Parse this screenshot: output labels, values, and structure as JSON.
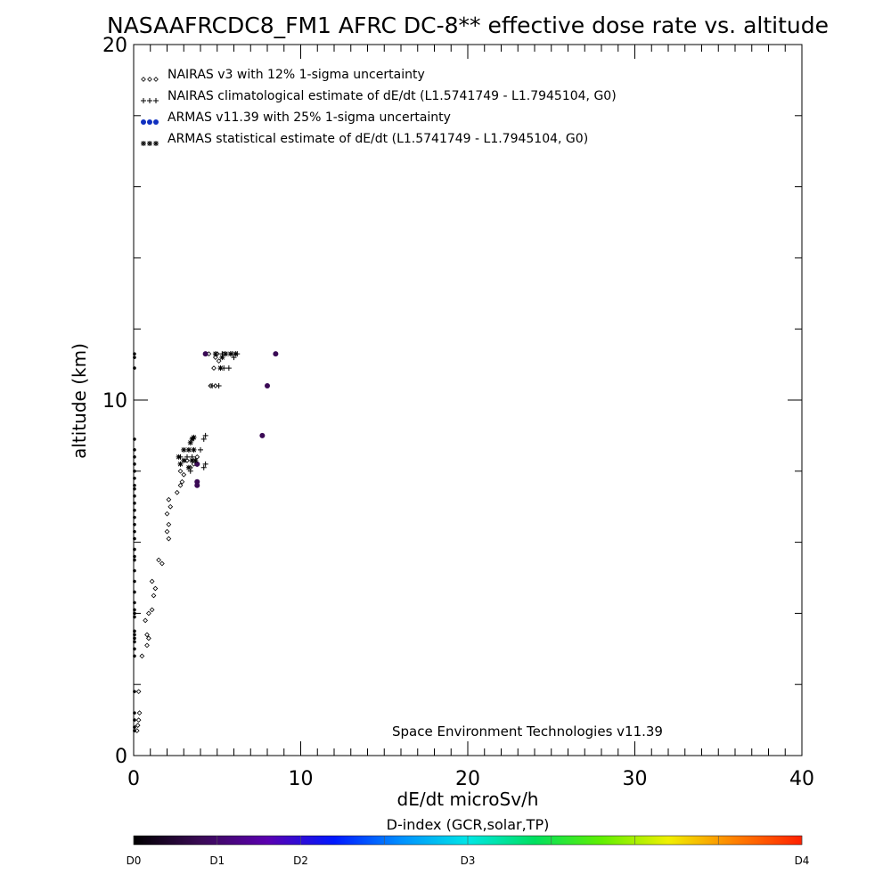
{
  "chart_data": {
    "type": "scatter",
    "title": "NASAAFRCDC8_FM1 AFRC DC-8** effective dose rate vs. altitude",
    "xlabel": "dE/dt microSv/h",
    "ylabel": "altitude (km)",
    "xlim": [
      0,
      40
    ],
    "ylim": [
      0,
      20
    ],
    "x_ticks": [
      0,
      10,
      20,
      30,
      40
    ],
    "y_ticks": [
      0,
      10,
      20
    ],
    "legend_position": "top-left",
    "annotation": "Space Environment Technologies v11.39",
    "series": [
      {
        "name": "NAIRAS v3 with 12% 1-sigma uncertainty",
        "marker": "diamond",
        "color": "#000000",
        "points": [
          [
            0.2,
            0.7
          ],
          [
            0.25,
            0.85
          ],
          [
            0.3,
            1.0
          ],
          [
            0.35,
            1.2
          ],
          [
            0.3,
            1.8
          ],
          [
            0.5,
            2.8
          ],
          [
            0.8,
            3.1
          ],
          [
            0.9,
            3.3
          ],
          [
            0.8,
            3.4
          ],
          [
            0.7,
            3.8
          ],
          [
            0.9,
            4.0
          ],
          [
            1.1,
            4.1
          ],
          [
            1.2,
            4.5
          ],
          [
            1.3,
            4.7
          ],
          [
            1.1,
            4.9
          ],
          [
            1.5,
            5.5
          ],
          [
            1.7,
            5.4
          ],
          [
            2.1,
            6.1
          ],
          [
            2.0,
            6.3
          ],
          [
            2.1,
            6.5
          ],
          [
            2.0,
            6.8
          ],
          [
            2.2,
            7.0
          ],
          [
            2.1,
            7.2
          ],
          [
            2.6,
            7.4
          ],
          [
            2.8,
            7.6
          ],
          [
            2.9,
            7.7
          ],
          [
            3.0,
            7.9
          ],
          [
            2.8,
            8.0
          ],
          [
            3.4,
            8.1
          ],
          [
            3.2,
            8.3
          ],
          [
            3.6,
            8.2
          ],
          [
            3.8,
            8.4
          ],
          [
            4.6,
            10.4
          ],
          [
            4.9,
            10.4
          ],
          [
            4.8,
            10.9
          ],
          [
            4.5,
            11.3
          ],
          [
            4.9,
            11.2
          ],
          [
            5.1,
            11.1
          ],
          [
            5.0,
            11.3
          ],
          [
            5.4,
            11.3
          ]
        ]
      },
      {
        "name": "NAIRAS climatological estimate of dE/dt (L1.5741749 - L1.7945104, G0)",
        "marker": "plus",
        "color": "#000000",
        "points": [
          [
            2.8,
            8.4
          ],
          [
            3.2,
            8.4
          ],
          [
            3.5,
            8.4
          ],
          [
            4.0,
            8.6
          ],
          [
            4.2,
            8.9
          ],
          [
            3.8,
            8.2
          ],
          [
            4.2,
            8.1
          ],
          [
            4.3,
            9.0
          ],
          [
            4.3,
            8.2
          ],
          [
            3.4,
            8.0
          ],
          [
            4.7,
            10.4
          ],
          [
            5.1,
            10.4
          ],
          [
            5.4,
            10.9
          ],
          [
            5.7,
            10.9
          ],
          [
            5.3,
            11.3
          ],
          [
            5.9,
            11.3
          ],
          [
            6.2,
            11.3
          ],
          [
            6.0,
            11.2
          ]
        ]
      },
      {
        "name": "ARMAS v11.39 with 25% 1-sigma uncertainty",
        "marker": "filled-circle",
        "color": "#3a0a55",
        "points": [
          [
            4.3,
            11.3
          ],
          [
            8.0,
            10.4
          ],
          [
            8.5,
            11.3
          ],
          [
            7.7,
            9.0
          ],
          [
            3.8,
            7.7
          ],
          [
            3.8,
            7.6
          ],
          [
            3.8,
            8.2
          ]
        ]
      },
      {
        "name": "ARMAS statistical estimate of dE/dt (L1.5741749 - L1.7945104, G0)",
        "marker": "asterisk",
        "color": "#000000",
        "points": [
          [
            2.7,
            8.4
          ],
          [
            3.0,
            8.6
          ],
          [
            3.3,
            8.6
          ],
          [
            3.6,
            8.6
          ],
          [
            2.8,
            8.2
          ],
          [
            3.0,
            8.3
          ],
          [
            3.5,
            8.3
          ],
          [
            3.7,
            8.3
          ],
          [
            3.3,
            8.1
          ],
          [
            3.4,
            8.8
          ],
          [
            3.5,
            8.9
          ],
          [
            3.6,
            8.95
          ],
          [
            5.2,
            10.9
          ],
          [
            5.5,
            11.3
          ],
          [
            5.8,
            11.3
          ],
          [
            6.1,
            11.3
          ],
          [
            4.9,
            11.3
          ],
          [
            5.3,
            11.2
          ]
        ]
      },
      {
        "name": "",
        "marker": "filled-circle-small",
        "color": "#000000",
        "points": [
          [
            0.05,
            0.7
          ],
          [
            0.05,
            0.8
          ],
          [
            0.05,
            1.0
          ],
          [
            0.05,
            1.2
          ],
          [
            0.05,
            1.8
          ],
          [
            0.05,
            2.8
          ],
          [
            0.05,
            3.0
          ],
          [
            0.05,
            3.2
          ],
          [
            0.05,
            3.3
          ],
          [
            0.05,
            3.4
          ],
          [
            0.05,
            3.5
          ],
          [
            0.05,
            3.9
          ],
          [
            0.05,
            4.0
          ],
          [
            0.05,
            4.1
          ],
          [
            0.05,
            4.3
          ],
          [
            0.05,
            4.6
          ],
          [
            0.05,
            4.9
          ],
          [
            0.05,
            5.2
          ],
          [
            0.05,
            5.5
          ],
          [
            0.05,
            5.6
          ],
          [
            0.05,
            5.8
          ],
          [
            0.05,
            6.1
          ],
          [
            0.05,
            6.3
          ],
          [
            0.05,
            6.5
          ],
          [
            0.05,
            6.7
          ],
          [
            0.05,
            6.9
          ],
          [
            0.05,
            7.1
          ],
          [
            0.05,
            7.3
          ],
          [
            0.05,
            7.5
          ],
          [
            0.05,
            7.6
          ],
          [
            0.05,
            7.8
          ],
          [
            0.05,
            8.0
          ],
          [
            0.05,
            8.2
          ],
          [
            0.05,
            8.4
          ],
          [
            0.05,
            8.6
          ],
          [
            0.05,
            8.9
          ],
          [
            0.05,
            10.9
          ],
          [
            0.05,
            11.2
          ],
          [
            0.05,
            11.3
          ]
        ]
      }
    ],
    "colorbar": {
      "title": "D-index (GCR,solar,TP)",
      "labels": [
        {
          "text": "D0",
          "pos": 0
        },
        {
          "text": "D1",
          "pos": 0.125
        },
        {
          "text": "D2",
          "pos": 0.25
        },
        {
          "text": "D3",
          "pos": 0.5
        },
        {
          "text": "D4",
          "pos": 1
        }
      ],
      "colors": [
        "#000000",
        "#3a0a55",
        "#5b00b0",
        "#0018ff",
        "#0090ff",
        "#00e6e6",
        "#00e060",
        "#60f000",
        "#f0f000",
        "#ff8000",
        "#ff2000"
      ]
    }
  }
}
